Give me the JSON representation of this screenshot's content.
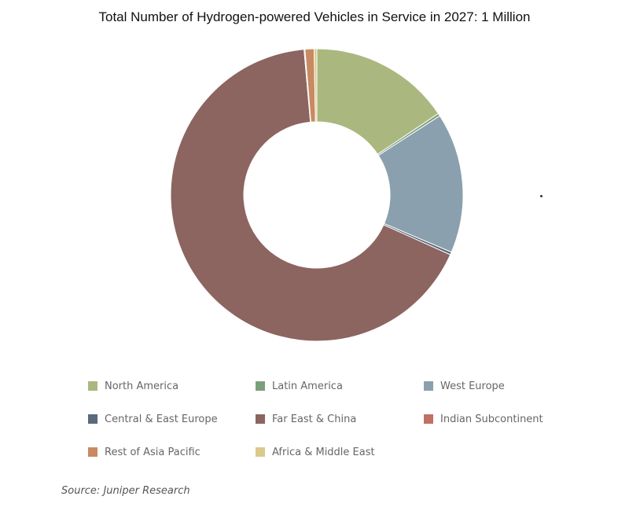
{
  "chart_data": {
    "type": "pie",
    "title": "Total Number of Hydrogen-powered Vehicles in Service in 2027: 1 Million",
    "hole": true,
    "categories": [
      "North America",
      "Latin America",
      "West Europe",
      "Central & East Europe",
      "Far East & China",
      "Indian Subcontinent",
      "Rest of Asia Pacific",
      "Africa & Middle East"
    ],
    "values": [
      15.6,
      0.3,
      15.5,
      0.3,
      66.9,
      0.1,
      1.0,
      0.3
    ],
    "unit": "%",
    "colors": [
      "#aab880",
      "#7aa07a",
      "#8aa0ae",
      "#5a6a7a",
      "#8c6460",
      "#c07064",
      "#c88a62",
      "#dcc88c"
    ],
    "legend_position": "bottom"
  },
  "source": {
    "text": "Source: Juniper Research"
  }
}
